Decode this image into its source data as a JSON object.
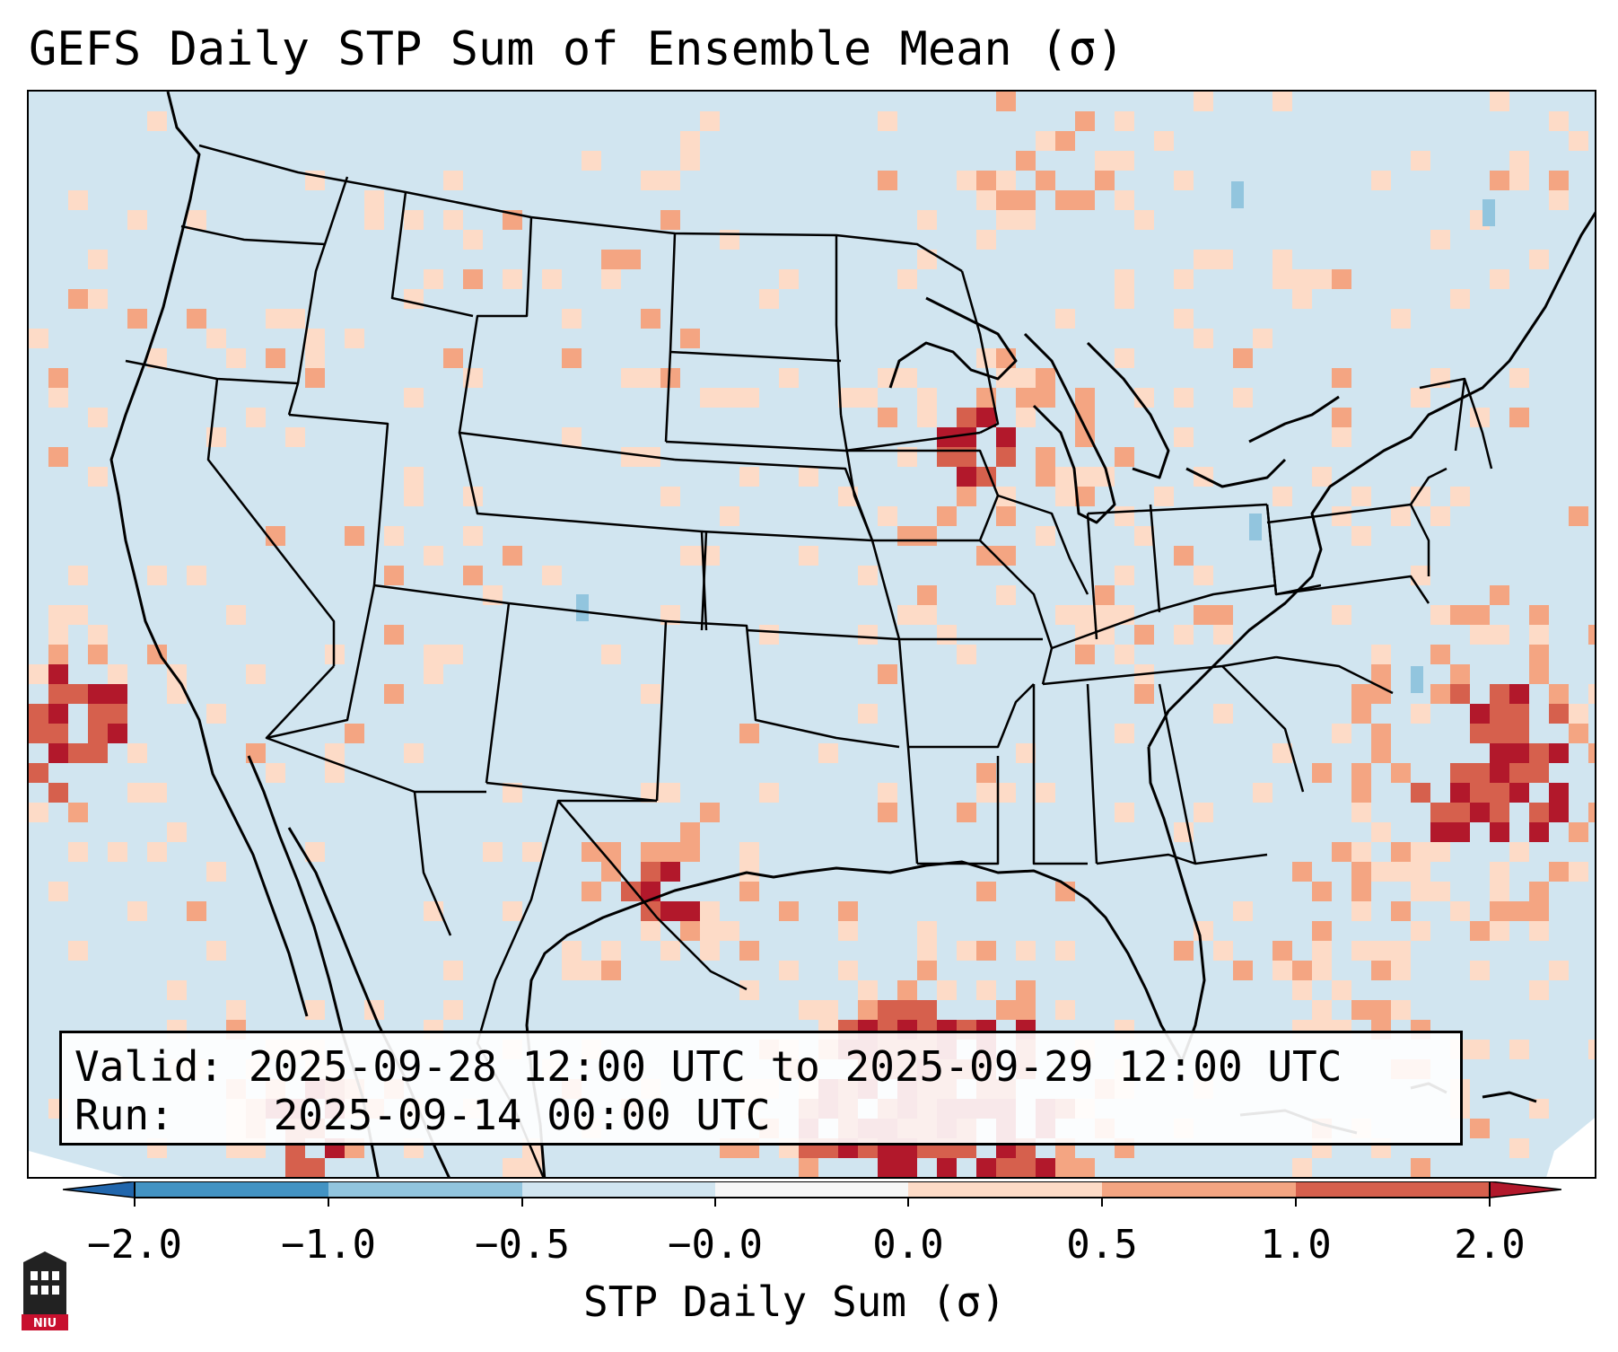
{
  "title": "GEFS Daily STP Sum of Ensemble Mean (σ)",
  "info": {
    "valid_label": "Valid:",
    "valid_text": "2025-09-28 12:00 UTC to 2025-09-29 12:00 UTC",
    "run_label": "Run:",
    "run_text": "2025-09-14 00:00 UTC"
  },
  "colorbar": {
    "label": "STP Daily Sum (σ)",
    "ticks": [
      "−2.0",
      "−1.0",
      "−0.5",
      "−0.0",
      "0.0",
      "0.5",
      "1.0",
      "2.0"
    ],
    "levels": [
      {
        "range": "< -2.0",
        "color": "#2166ac"
      },
      {
        "range": "-2.0 to -1.0",
        "color": "#4393c3"
      },
      {
        "range": "-1.0 to -0.5",
        "color": "#92c5de"
      },
      {
        "range": "-0.5 to -0.0",
        "color": "#d1e5f0"
      },
      {
        "range": "-0.0 to 0.0",
        "color": "#f7f7f7"
      },
      {
        "range": "0.0 to 0.5",
        "color": "#fddbc7"
      },
      {
        "range": "0.5 to 1.0",
        "color": "#f4a582"
      },
      {
        "range": "1.0 to 2.0",
        "color": "#d6604d"
      },
      {
        "range": "> 2.0",
        "color": "#b2182b"
      }
    ]
  },
  "logo": {
    "text": "NIU"
  },
  "map": {
    "projection": "Lambert Conformal, CONUS",
    "background_value_color": "#d1e5f0",
    "high_anomaly_regions": [
      "Pacific Ocean west of Southern California",
      "Gulf of Mexico",
      "Western Atlantic east of the Carolinas",
      "Upper Midwest / Wisconsin",
      "Texas Panhandle / West Texas"
    ]
  }
}
